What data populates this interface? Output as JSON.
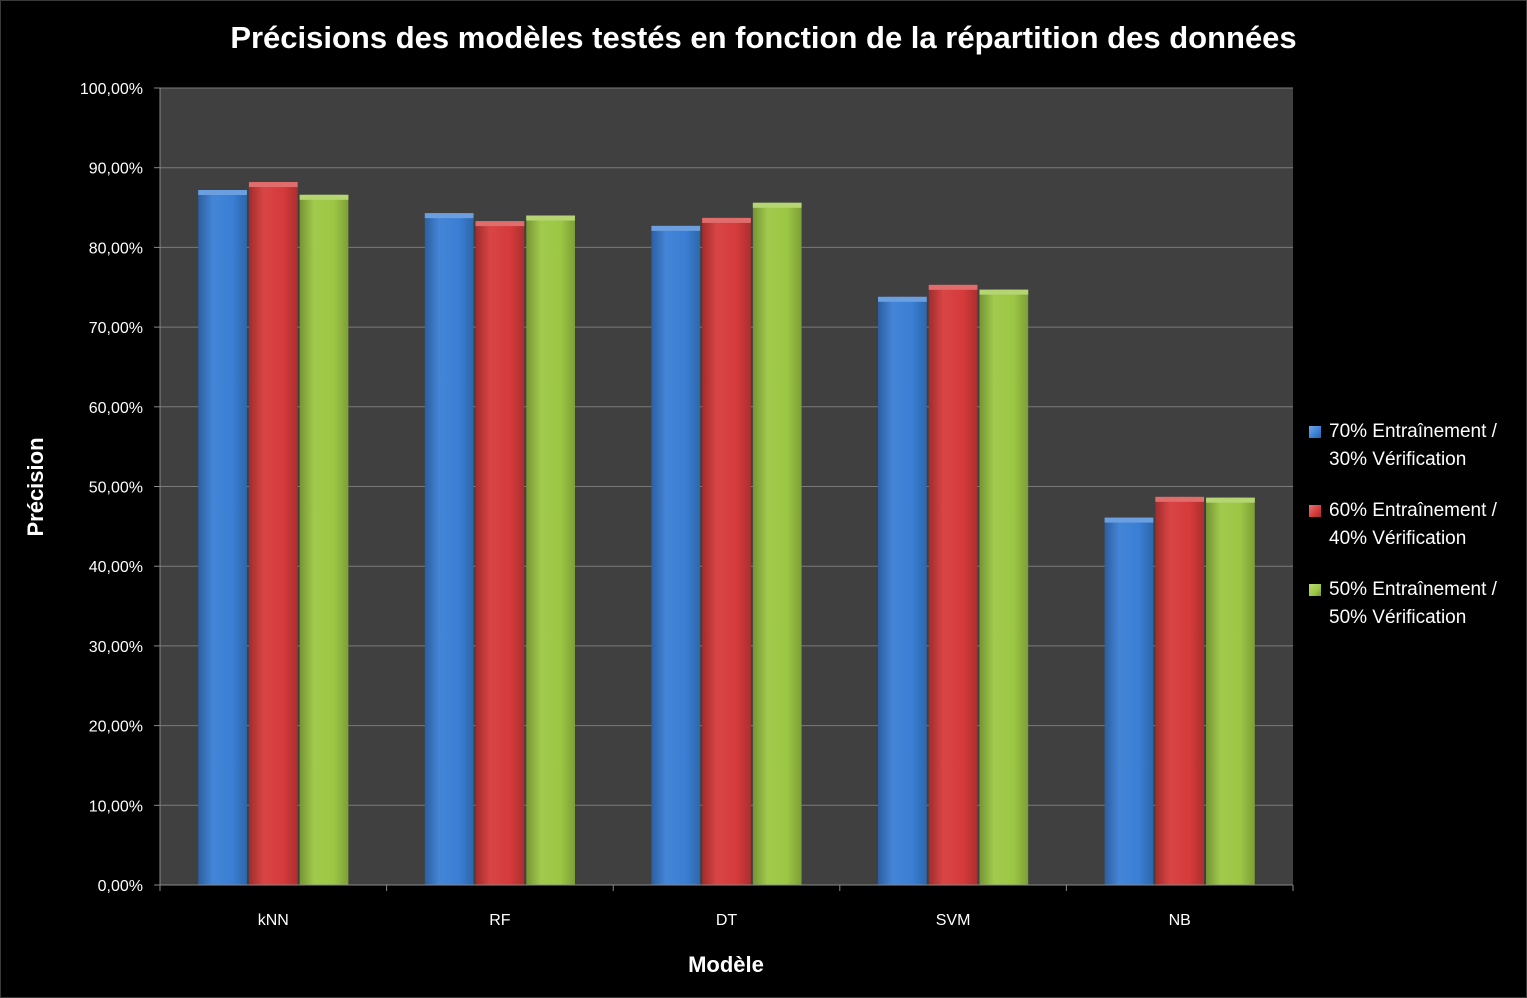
{
  "chart_data": {
    "type": "bar",
    "title": "Précisions des modèles testés en fonction de la répartition des données",
    "xlabel": "Modèle",
    "ylabel": "Précision",
    "categories": [
      "kNN",
      "RF",
      "DT",
      "SVM",
      "NB"
    ],
    "ylim": [
      0,
      100
    ],
    "y_ticks": [
      0,
      10,
      20,
      30,
      40,
      50,
      60,
      70,
      80,
      90,
      100
    ],
    "y_tick_labels": [
      "0,00%",
      "10,00%",
      "20,00%",
      "30,00%",
      "40,00%",
      "50,00%",
      "60,00%",
      "70,00%",
      "80,00%",
      "90,00%",
      "100,00%"
    ],
    "grid": true,
    "legend_position": "right",
    "series": [
      {
        "name": "70% Entraînement / 30% Vérification",
        "name_lines": [
          "70% Entraînement /",
          "30% Vérification"
        ],
        "color": "#3A7FD5",
        "values": [
          87.2,
          84.3,
          82.7,
          73.8,
          46.1
        ]
      },
      {
        "name": "60% Entraînement / 40% Vérification",
        "name_lines": [
          "60% Entraînement /",
          "40% Vérification"
        ],
        "color": "#D63B3B",
        "values": [
          88.2,
          83.3,
          83.7,
          75.3,
          48.7
        ]
      },
      {
        "name": "50% Entraînement / 50% Vérification",
        "name_lines": [
          "50% Entraînement /",
          "50% Vérification"
        ],
        "color": "#9CC744",
        "values": [
          86.6,
          84.0,
          85.6,
          74.7,
          48.6
        ]
      }
    ]
  }
}
